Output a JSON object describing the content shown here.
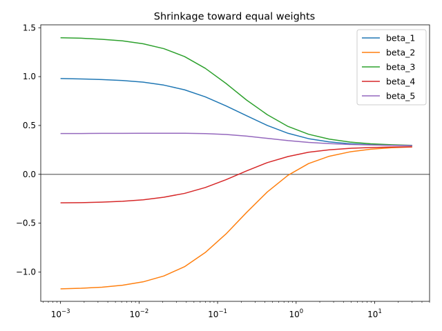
{
  "chart_data": {
    "type": "line",
    "title": "Shrinkage toward equal weights",
    "xlabel": "",
    "ylabel": "",
    "xscale": "log",
    "xlim": [
      0.00056,
      50
    ],
    "ylim": [
      -1.3,
      1.53
    ],
    "x_major_ticks": [
      0.001,
      0.01,
      0.1,
      1,
      10
    ],
    "x_tick_labels": [
      {
        "base": "10",
        "exp": "−3"
      },
      {
        "base": "10",
        "exp": "−2"
      },
      {
        "base": "10",
        "exp": "−1"
      },
      {
        "base": "10",
        "exp": "0"
      },
      {
        "base": "10",
        "exp": "1"
      }
    ],
    "y_ticks": [
      -1.0,
      -0.5,
      0.0,
      0.5,
      1.0,
      1.5
    ],
    "y_tick_labels": [
      "−1.0",
      "−0.5",
      "0.0",
      "0.5",
      "1.0",
      "1.5"
    ],
    "grid": false,
    "legend_position": "top-right",
    "reference_line": {
      "y": 0,
      "color": "#808080"
    },
    "x": [
      0.001,
      0.00183,
      0.00336,
      0.00616,
      0.0113,
      0.0207,
      0.038,
      0.0697,
      0.128,
      0.234,
      0.43,
      0.788,
      1.44,
      2.64,
      4.85,
      8.9,
      16.3,
      30
    ],
    "series": [
      {
        "name": "beta_1",
        "color": "#1f77b4",
        "values": [
          0.98,
          0.976,
          0.97,
          0.96,
          0.943,
          0.913,
          0.865,
          0.793,
          0.7,
          0.6,
          0.5,
          0.42,
          0.365,
          0.332,
          0.313,
          0.303,
          0.297,
          0.294
        ]
      },
      {
        "name": "beta_2",
        "color": "#ff7f0e",
        "values": [
          -1.172,
          -1.166,
          -1.155,
          -1.135,
          -1.1,
          -1.04,
          -0.945,
          -0.8,
          -0.61,
          -0.39,
          -0.18,
          -0.01,
          0.11,
          0.185,
          0.23,
          0.257,
          0.272,
          0.28
        ]
      },
      {
        "name": "beta_3",
        "color": "#2ca02c",
        "values": [
          1.398,
          1.393,
          1.382,
          1.366,
          1.336,
          1.286,
          1.205,
          1.085,
          0.93,
          0.76,
          0.61,
          0.49,
          0.41,
          0.36,
          0.33,
          0.313,
          0.303,
          0.297
        ]
      },
      {
        "name": "beta_4",
        "color": "#d62728",
        "values": [
          -0.292,
          -0.29,
          -0.285,
          -0.276,
          -0.261,
          -0.234,
          -0.195,
          -0.135,
          -0.055,
          0.035,
          0.12,
          0.182,
          0.226,
          0.251,
          0.266,
          0.274,
          0.279,
          0.282
        ]
      },
      {
        "name": "beta_5",
        "color": "#9467bd",
        "values": [
          0.418,
          0.418,
          0.419,
          0.419,
          0.42,
          0.42,
          0.42,
          0.417,
          0.408,
          0.391,
          0.368,
          0.345,
          0.327,
          0.314,
          0.306,
          0.3,
          0.297,
          0.295
        ]
      }
    ]
  }
}
